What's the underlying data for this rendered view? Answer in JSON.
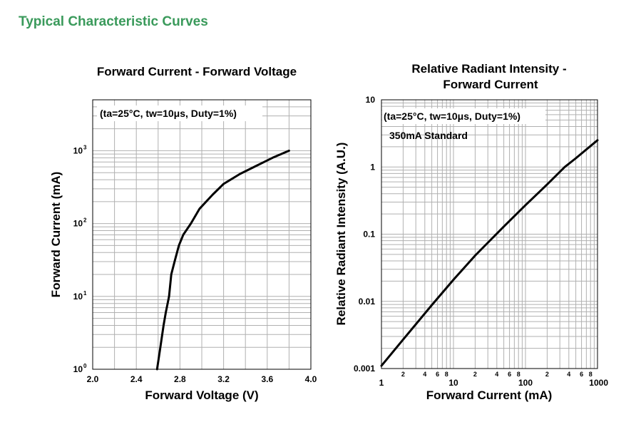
{
  "page": {
    "section_title": "Typical Characteristic Curves"
  },
  "colors": {
    "section_title": "#3a9a5b",
    "grid": "#b0b0b0",
    "curve": "#000000",
    "frame": "#000000"
  },
  "chart_data": [
    {
      "type": "line",
      "title_lines": [
        "Forward Current - Forward Voltage"
      ],
      "xlabel": "Forward Voltage (V)",
      "ylabel": "Forward Current (mA)",
      "xscale": "linear",
      "yscale": "log",
      "xlim": [
        2.0,
        4.0
      ],
      "ylim": [
        1,
        5000
      ],
      "x_ticks": [
        "2.0",
        "2.4",
        "2.8",
        "3.2",
        "3.6",
        "4.0"
      ],
      "y_ticks": [
        {
          "base": "10",
          "exp": "0"
        },
        {
          "base": "10",
          "exp": "1"
        },
        {
          "base": "10",
          "exp": "2"
        },
        {
          "base": "10",
          "exp": "3"
        }
      ],
      "grid": true,
      "annotations": [
        "(ta=25°C, tw=10μs, Duty=1%)"
      ],
      "series": [
        {
          "x": [
            2.59,
            2.62,
            2.65,
            2.67,
            2.7,
            2.72,
            2.75,
            2.79,
            2.83,
            2.9,
            2.98,
            3.1,
            3.2,
            3.35,
            3.5,
            3.65,
            3.8
          ],
          "y": [
            1,
            2,
            4,
            6,
            10,
            20,
            30,
            50,
            70,
            100,
            160,
            250,
            350,
            480,
            620,
            800,
            1000
          ]
        }
      ]
    },
    {
      "type": "line",
      "title_lines": [
        "Relative Radiant Intensity -",
        "Forward Current"
      ],
      "xlabel": "Forward Current (mA)",
      "ylabel": "Relative Radiant Intensity (A.U.)",
      "xscale": "log",
      "yscale": "log",
      "xlim": [
        1,
        1000
      ],
      "ylim": [
        0.001,
        10
      ],
      "x_ticks": [
        "1",
        "10",
        "100",
        "1000"
      ],
      "x_minor_tick_labels": [
        "2",
        "4",
        "6",
        "8"
      ],
      "y_ticks": [
        "0.001",
        "0.01",
        "0.1",
        "1",
        "10"
      ],
      "grid": true,
      "annotations": [
        "(ta=25°C, tw=10μs, Duty=1%)",
        "350mA Standard"
      ],
      "series": [
        {
          "x": [
            1,
            2,
            5,
            10,
            20,
            50,
            100,
            200,
            350,
            500,
            1000
          ],
          "y": [
            0.0011,
            0.0027,
            0.0088,
            0.021,
            0.048,
            0.13,
            0.27,
            0.55,
            1.0,
            1.35,
            2.5
          ]
        }
      ]
    }
  ]
}
